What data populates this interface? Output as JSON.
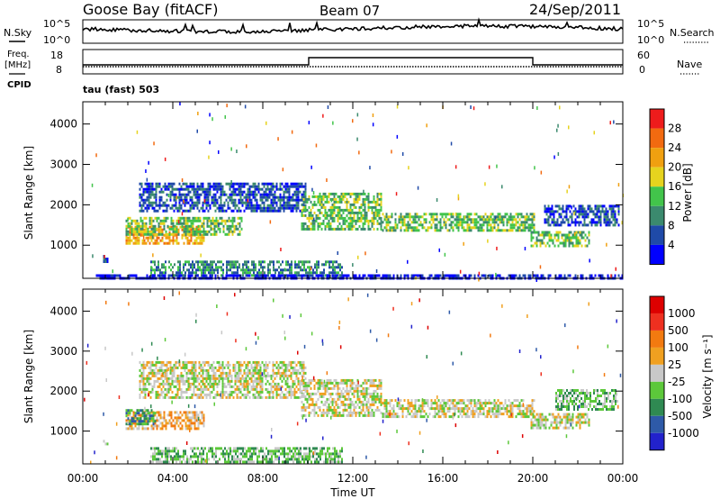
{
  "header": {
    "station": "Goose Bay (fitACF)",
    "beam": "Beam 07",
    "date": "24/Sep/2011"
  },
  "top_panel": {
    "left_label": "N.Sky",
    "right_label": "N.Search",
    "left_ticks": [
      "10^5",
      "10^0"
    ],
    "right_ticks": [
      "10^5",
      "10^0"
    ]
  },
  "freq_panel": {
    "left_label_1": "Freq.",
    "left_label_2": "[MHz]",
    "left_label_3": "CPID",
    "right_label": "Nave",
    "left_ticks": [
      "18",
      "8"
    ],
    "right_ticks": [
      "60",
      "0"
    ],
    "cpid_text": "tau (fast) 503"
  },
  "chart_data": [
    {
      "type": "heatmap",
      "ylabel": "Slant Range [km]",
      "xlabel": "",
      "yticks": [
        "1000",
        "2000",
        "3000",
        "4000"
      ],
      "ylim": [
        180,
        4550
      ],
      "colorbar_label": "Power [dB]",
      "colorbar_ticks": [
        "4",
        "8",
        "12",
        "16",
        "20",
        "24",
        "28"
      ],
      "colors": [
        "#0000ff",
        "#1f4aa8",
        "#3b8a6e",
        "#42c44b",
        "#e6d31e",
        "#f0a010",
        "#f26a10",
        "#ee1c1c"
      ],
      "regions": [
        {
          "t0": 0.9,
          "t1": 1.1,
          "r0": 600,
          "r1": 760,
          "level": 1
        },
        {
          "t0": 1.9,
          "t1": 5.4,
          "r0": 1020,
          "r1": 1480,
          "level": 5
        },
        {
          "t0": 1.9,
          "t1": 7.1,
          "r0": 1280,
          "r1": 1700,
          "level": 3
        },
        {
          "t0": 2.5,
          "t1": 9.9,
          "r0": 1850,
          "r1": 2550,
          "level": 1
        },
        {
          "t0": 9.7,
          "t1": 13.3,
          "r0": 1400,
          "r1": 2300,
          "level": 3
        },
        {
          "t0": 13.3,
          "t1": 20.1,
          "r0": 1350,
          "r1": 1800,
          "level": 3
        },
        {
          "t0": 19.9,
          "t1": 22.5,
          "r0": 950,
          "r1": 1350,
          "level": 3
        },
        {
          "t0": 20.5,
          "t1": 23.8,
          "r0": 1500,
          "r1": 2000,
          "level": 1
        },
        {
          "t0": 3.0,
          "t1": 11.5,
          "r0": 220,
          "r1": 620,
          "level": 2
        },
        {
          "t0": 0.5,
          "t1": 24.0,
          "r0": 180,
          "r1": 280,
          "level": 0
        }
      ]
    },
    {
      "type": "heatmap",
      "ylabel": "Slant Range [km]",
      "xlabel": "Time UT",
      "xticks": [
        "00:00",
        "04:00",
        "08:00",
        "12:00",
        "16:00",
        "20:00",
        "00:00"
      ],
      "xlim": [
        0,
        24
      ],
      "yticks": [
        "1000",
        "2000",
        "3000",
        "4000"
      ],
      "ylim": [
        180,
        4550
      ],
      "colorbar_label": "Velocity [m s⁻¹]",
      "colorbar_ticks": [
        "1000",
        "500",
        "100",
        "25",
        "-25",
        "-100",
        "-500",
        "-1000"
      ],
      "colors": [
        "#2222cc",
        "#2e5aa8",
        "#2f8a52",
        "#5cc83a",
        "#c8c8c8",
        "#f0a020",
        "#f27a10",
        "#ee3020",
        "#dd0000"
      ],
      "regions": [
        {
          "t0": 0.9,
          "t1": 1.1,
          "r0": 650,
          "r1": 780,
          "level": 4
        },
        {
          "t0": 1.9,
          "t1": 5.4,
          "r0": 1060,
          "r1": 1500,
          "level": 5
        },
        {
          "t0": 1.9,
          "t1": 3.2,
          "r0": 1200,
          "r1": 1550,
          "level": 2
        },
        {
          "t0": 2.5,
          "t1": 9.9,
          "r0": 1850,
          "r1": 2750,
          "level": 4
        },
        {
          "t0": 9.7,
          "t1": 13.3,
          "r0": 1400,
          "r1": 2300,
          "level": 4
        },
        {
          "t0": 13.3,
          "t1": 20.1,
          "r0": 1350,
          "r1": 1800,
          "level": 4
        },
        {
          "t0": 19.9,
          "t1": 22.5,
          "r0": 1050,
          "r1": 1450,
          "level": 4
        },
        {
          "t0": 21.0,
          "t1": 23.8,
          "r0": 1550,
          "r1": 2050,
          "level": 3
        },
        {
          "t0": 3.0,
          "t1": 11.5,
          "r0": 220,
          "r1": 600,
          "level": 3
        }
      ]
    }
  ]
}
